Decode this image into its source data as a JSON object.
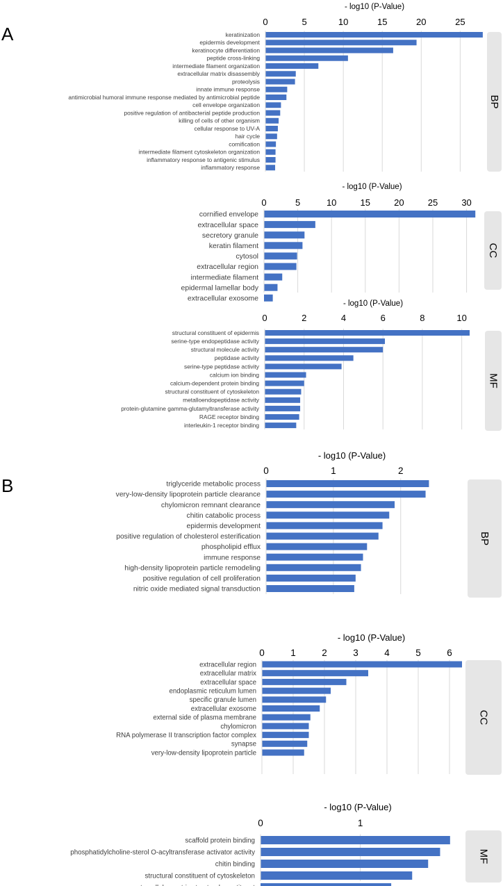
{
  "panels": {
    "A": "A",
    "B": "B"
  },
  "colors": {
    "bar": "#4472c4",
    "grid": "#d9d9d9",
    "side_box": "#e6e6e6",
    "label": "#404040"
  },
  "chart_data": [
    {
      "id": "A-BP",
      "type": "bar",
      "orientation": "horizontal",
      "side_label": "BP",
      "xlabel": "- log10 (P-Value)",
      "xlim": [
        0,
        28
      ],
      "ticks": [
        0,
        5,
        10,
        15,
        20,
        25
      ],
      "categories": [
        "keratinization",
        "epidermis development",
        "keratinocyte differentiation",
        "peptide cross-linking",
        "intermediate filament organization",
        "extracellular matrix disassembly",
        "proteolysis",
        "innate immune response",
        "antimicrobial humoral immune response mediated by antimicrobial peptide",
        "cell envelope organization",
        "positive regulation of antibacterial peptide production",
        "killing of cells of other organism",
        "cellular response to UV-A",
        "hair cycle",
        "cornification",
        "intermediate filament cytoskeleton organization",
        "inflammatory response to antigenic stimulus",
        "inflammatory response"
      ],
      "values": [
        27.9,
        19.4,
        16.4,
        10.6,
        6.8,
        3.9,
        3.8,
        2.8,
        2.7,
        2.0,
        1.9,
        1.7,
        1.6,
        1.5,
        1.35,
        1.3,
        1.3,
        1.25
      ]
    },
    {
      "id": "A-CC",
      "type": "bar",
      "orientation": "horizontal",
      "side_label": "CC",
      "xlabel": "- log10 (P-Value)",
      "xlim": [
        0,
        32
      ],
      "ticks": [
        0,
        5,
        10,
        15,
        20,
        25,
        30
      ],
      "categories": [
        "cornified envelope",
        "extracellular space",
        "secretory granule",
        "keratin filament",
        "cytosol",
        "extracellular region",
        "intermediate filament",
        "epidermal lamellar body",
        "extracellular exosome"
      ],
      "values": [
        31.3,
        7.6,
        6.0,
        5.7,
        4.9,
        4.8,
        2.7,
        2.0,
        1.3
      ]
    },
    {
      "id": "A-MF",
      "type": "bar",
      "orientation": "horizontal",
      "side_label": "MF",
      "xlabel": "- log10 (P-Value)",
      "xlim": [
        0,
        11
      ],
      "ticks": [
        0,
        2,
        4,
        6,
        8,
        10
      ],
      "categories": [
        "structural constituent of epidermis",
        "serine-type endopeptidase activity",
        "structural molecule activity",
        "peptidase activity",
        "serine-type peptidase activity",
        "calcium ion binding",
        "calcium-dependent protein binding",
        "structural constituent of cytoskeleton",
        "metalloendopeptidase activity",
        "protein-glutamine gamma-glutamyltransferase activity",
        "RAGE receptor binding",
        "interleukin-1 receptor binding"
      ],
      "values": [
        10.4,
        6.1,
        6.0,
        4.5,
        3.9,
        2.1,
        2.0,
        1.85,
        1.8,
        1.8,
        1.75,
        1.6
      ]
    },
    {
      "id": "B-BP",
      "type": "bar",
      "orientation": "horizontal",
      "side_label": "BP",
      "xlabel": "- log10 (P-Value)",
      "xlim": [
        0,
        2.55
      ],
      "ticks": [
        0,
        1,
        2
      ],
      "categories": [
        "triglyceride metabolic process",
        "very-low-density lipoprotein particle clearance",
        "chylomicron remnant clearance",
        "chitin catabolic process",
        "epidermis development",
        "positive regulation of cholesterol esterification",
        "phospholipid efflux",
        "immune response",
        "high-density lipoprotein particle remodeling",
        "positive regulation of cell proliferation",
        "nitric oxide mediated signal transduction"
      ],
      "values": [
        2.42,
        2.37,
        1.91,
        1.83,
        1.73,
        1.67,
        1.5,
        1.44,
        1.41,
        1.33,
        1.31
      ]
    },
    {
      "id": "B-CC",
      "type": "bar",
      "orientation": "horizontal",
      "side_label": "CC",
      "xlabel": "- log10 (P-Value)",
      "xlim": [
        0,
        7
      ],
      "ticks": [
        0,
        1,
        2,
        3,
        4,
        5,
        6
      ],
      "categories": [
        "extracellular region",
        "extracellular matrix",
        "extracellular space",
        "endoplasmic reticulum lumen",
        "specific granule lumen",
        "extracellular exosome",
        "external side of plasma membrane",
        "chylomicron",
        "RNA polymerase II transcription factor complex",
        "synapse",
        "very-low-density lipoprotein particle"
      ],
      "values": [
        6.4,
        3.4,
        2.7,
        2.2,
        2.05,
        1.85,
        1.55,
        1.5,
        1.5,
        1.45,
        1.35
      ]
    },
    {
      "id": "B-MF",
      "type": "bar",
      "orientation": "horizontal",
      "side_label": "MF",
      "xlabel": "- log10 (P-Value)",
      "xlim": [
        0,
        1.95
      ],
      "ticks": [
        0,
        1
      ],
      "categories": [
        "scaffold protein binding",
        "phosphatidylcholine-sterol O-acyltransferase activator activity",
        "chitin binding",
        "structural constituent of cytoskeleton",
        "extracellular matrix structural constituent"
      ],
      "values": [
        1.9,
        1.8,
        1.68,
        1.52,
        1.31
      ]
    }
  ]
}
